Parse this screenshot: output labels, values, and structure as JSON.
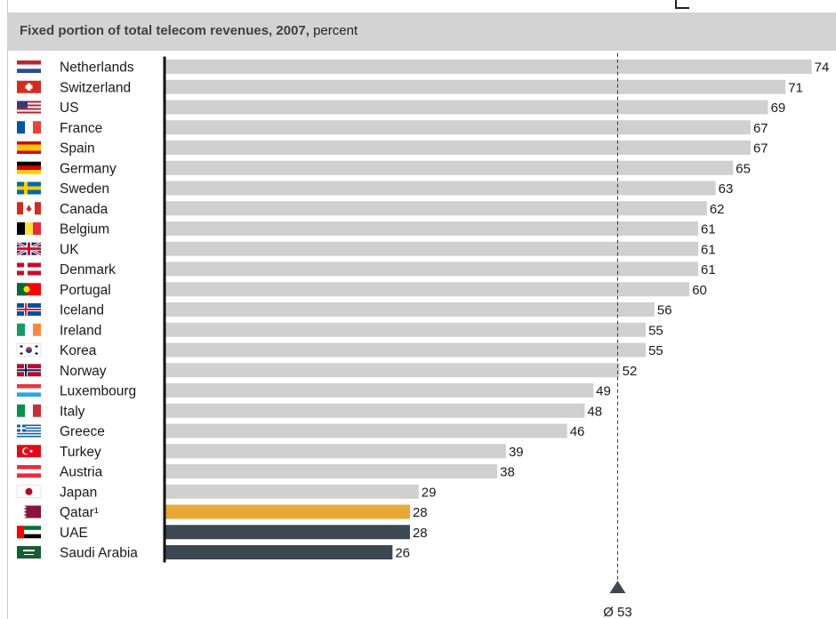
{
  "header": {
    "title_bold": "Fixed portion of total telecom revenues, 2007,",
    "title_unit": "percent"
  },
  "average": {
    "value": 53,
    "label": "Ø 53"
  },
  "colors": {
    "bar_default": "#d0d0d0",
    "bar_qatar": "#e8a835",
    "bar_gcc": "#3d4852",
    "axis": "#111111"
  },
  "chart_data": {
    "type": "bar",
    "orientation": "horizontal",
    "title": "Fixed portion of total telecom revenues, 2007, percent",
    "categories": [
      "Netherlands",
      "Switzerland",
      "US",
      "France",
      "Spain",
      "Germany",
      "Sweden",
      "Canada",
      "Belgium",
      "UK",
      "Denmark",
      "Portugal",
      "Iceland",
      "Ireland",
      "Korea",
      "Norway",
      "Luxembourg",
      "Italy",
      "Greece",
      "Turkey",
      "Austria",
      "Japan",
      "Qatar",
      "UAE",
      "Saudi Arabia"
    ],
    "labels": [
      "Netherlands",
      "Switzerland",
      "US",
      "France",
      "Spain",
      "Germany",
      "Sweden",
      "Canada",
      "Belgium",
      "UK",
      "Denmark",
      "Portugal",
      "Iceland",
      "Ireland",
      "Korea",
      "Norway",
      "Luxembourg",
      "Italy",
      "Greece",
      "Turkey",
      "Austria",
      "Japan",
      "Qatar¹",
      "UAE",
      "Saudi Arabia"
    ],
    "values": [
      74,
      71,
      69,
      67,
      67,
      65,
      63,
      62,
      61,
      61,
      61,
      60,
      56,
      55,
      55,
      52,
      49,
      48,
      46,
      39,
      38,
      29,
      28,
      28,
      26
    ],
    "highlight": {
      "Qatar": "bar_qatar",
      "UAE": "bar_gcc",
      "Saudi Arabia": "bar_gcc"
    },
    "flags": [
      "netherlands-flag-icon",
      "switzerland-flag-icon",
      "us-flag-icon",
      "france-flag-icon",
      "spain-flag-icon",
      "germany-flag-icon",
      "sweden-flag-icon",
      "canada-flag-icon",
      "belgium-flag-icon",
      "uk-flag-icon",
      "denmark-flag-icon",
      "portugal-flag-icon",
      "iceland-flag-icon",
      "ireland-flag-icon",
      "korea-flag-icon",
      "norway-flag-icon",
      "luxembourg-flag-icon",
      "italy-flag-icon",
      "greece-flag-icon",
      "turkey-flag-icon",
      "austria-flag-icon",
      "japan-flag-icon",
      "qatar-flag-icon",
      "uae-flag-icon",
      "saudi-arabia-flag-icon"
    ],
    "reference_line": 53,
    "xlim": [
      0,
      74
    ]
  }
}
